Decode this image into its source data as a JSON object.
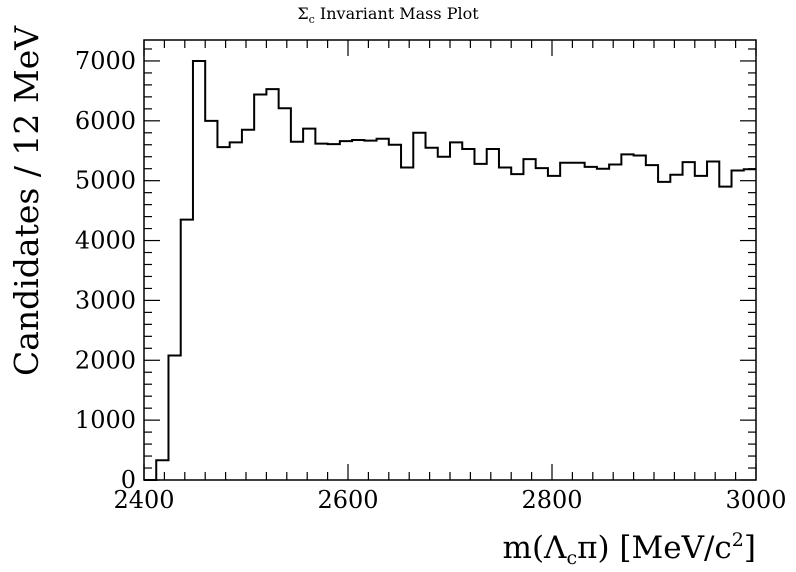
{
  "chart_data": {
    "type": "histogram",
    "title": {
      "main": "Σ",
      "sub": "c",
      "rest": " Invariant Mass Plot"
    },
    "xlabel": {
      "pre": "m(Λ",
      "sub": "c",
      "mid": "π) [MeV/c",
      "sup": "2",
      "post": "]"
    },
    "ylabel": "Candidates / 12 MeV",
    "xlim": [
      2400,
      3000
    ],
    "ylim": [
      0,
      7350
    ],
    "x_ticks": [
      "2400",
      "2600",
      "2800",
      "3000"
    ],
    "y_ticks": [
      "0",
      "1000",
      "2000",
      "3000",
      "4000",
      "5000",
      "6000",
      "7000"
    ],
    "bin_width": 12,
    "bin_edges_start": 2400,
    "values": [
      0,
      330,
      2080,
      4350,
      7000,
      6000,
      5560,
      5640,
      5850,
      6440,
      6530,
      6210,
      5650,
      5870,
      5620,
      5610,
      5660,
      5680,
      5670,
      5700,
      5600,
      5220,
      5800,
      5550,
      5400,
      5640,
      5530,
      5280,
      5530,
      5220,
      5110,
      5360,
      5210,
      5080,
      5300,
      5300,
      5230,
      5200,
      5270,
      5440,
      5420,
      5260,
      4980,
      5100,
      5310,
      5080,
      5320,
      4900,
      5170,
      5190
    ],
    "grid": false,
    "legend": "none"
  }
}
